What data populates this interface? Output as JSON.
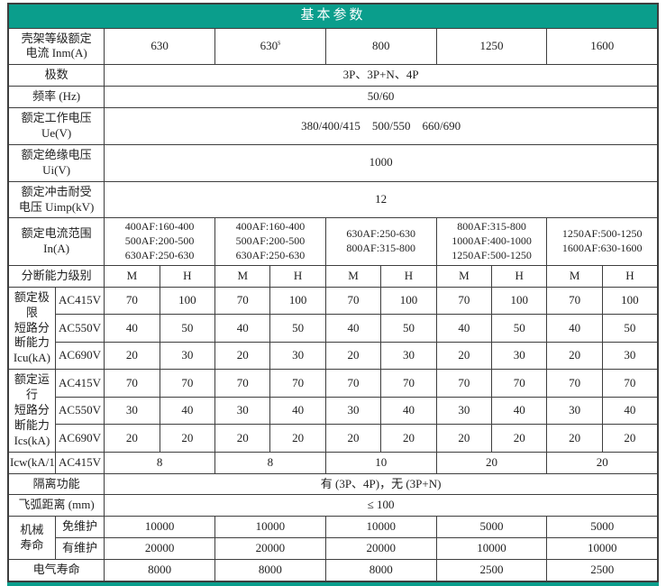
{
  "colors": {
    "header_bg": "#0a9e8c",
    "header_text": "#ffffff",
    "grid_border": "#3e3e3e",
    "body_text": "#1f1f1f"
  },
  "table": {
    "title": "基本参数",
    "rows": [
      {
        "name": "header-row",
        "cells": [
          {
            "t": "基本参数",
            "cs": 12,
            "th": true,
            "name": "table-title"
          }
        ]
      },
      {
        "name": "frame-rated-current-row",
        "cells": [
          {
            "t": "壳架等级额定\n电流 Inm(A)",
            "cs": 2,
            "th": true,
            "name": "label-frame-rated-current"
          },
          {
            "t": "630",
            "cs": 2
          },
          {
            "t": "630",
            "sup": "s",
            "cs": 2
          },
          {
            "t": "800",
            "cs": 2
          },
          {
            "t": "1250",
            "cs": 2
          },
          {
            "t": "1600",
            "cs": 2
          }
        ]
      },
      {
        "name": "poles-row",
        "cells": [
          {
            "t": "极数",
            "cs": 2,
            "th": true,
            "name": "label-poles"
          },
          {
            "t": "3P、3P+N、4P",
            "cs": 10
          }
        ]
      },
      {
        "name": "frequency-row",
        "cells": [
          {
            "t": "频率 (Hz)",
            "cs": 2,
            "th": true,
            "name": "label-frequency"
          },
          {
            "t": "50/60",
            "cs": 10
          }
        ]
      },
      {
        "name": "rated-working-voltage-row",
        "cells": [
          {
            "t": "额定工作电压\nUe(V)",
            "cs": 2,
            "th": true,
            "name": "label-rated-working-voltage"
          },
          {
            "t": "380/400/415    500/550    660/690",
            "cs": 10
          }
        ]
      },
      {
        "name": "rated-insulation-voltage-row",
        "cells": [
          {
            "t": "额定绝缘电压\nUi(V)",
            "cs": 2,
            "th": true,
            "name": "label-rated-insulation-voltage"
          },
          {
            "t": "1000",
            "cs": 10
          }
        ]
      },
      {
        "name": "rated-impulse-voltage-row",
        "cells": [
          {
            "t": "额定冲击耐受\n电压 Uimp(kV)",
            "cs": 2,
            "th": true,
            "name": "label-rated-impulse-voltage"
          },
          {
            "t": "12",
            "cs": 10
          }
        ]
      },
      {
        "name": "rated-current-range-row",
        "cells": [
          {
            "t": "额定电流范围\nIn(A)",
            "cs": 2,
            "th": true,
            "name": "label-rated-current-range"
          },
          {
            "t": "400AF:160-400\n500AF:200-500\n630AF:250-630",
            "cs": 2,
            "cls": "small"
          },
          {
            "t": "400AF:160-400\n500AF:200-500\n630AF:250-630",
            "cs": 2,
            "cls": "small"
          },
          {
            "t": "630AF:250-630\n800AF:315-800",
            "cs": 2,
            "cls": "small tall"
          },
          {
            "t": "800AF:315-800\n1000AF:400-1000\n1250AF:500-1250",
            "cs": 2,
            "cls": "small"
          },
          {
            "t": "1250AF:500-1250\n1600AF:630-1600",
            "cs": 2,
            "cls": "small tall"
          }
        ]
      },
      {
        "name": "breaking-capacity-class-row",
        "cells": [
          {
            "t": "分断能力级别",
            "cs": 2,
            "th": true,
            "name": "label-breaking-capacity-class"
          },
          {
            "t": "M"
          },
          {
            "t": "H"
          },
          {
            "t": "M"
          },
          {
            "t": "H"
          },
          {
            "t": "M"
          },
          {
            "t": "H"
          },
          {
            "t": "M"
          },
          {
            "t": "H"
          },
          {
            "t": "M"
          },
          {
            "t": "H"
          }
        ]
      },
      {
        "name": "icu-ac415v-row",
        "cells": [
          {
            "t": "额定极限\n短路分\n断能力\nIcu(kA)",
            "rs": 3,
            "th": true,
            "name": "label-icu-group"
          },
          {
            "t": "AC415V",
            "th": true,
            "name": "label-icu-ac415v"
          },
          {
            "t": "70"
          },
          {
            "t": "100"
          },
          {
            "t": "70"
          },
          {
            "t": "100"
          },
          {
            "t": "70"
          },
          {
            "t": "100"
          },
          {
            "t": "70"
          },
          {
            "t": "100"
          },
          {
            "t": "70"
          },
          {
            "t": "100"
          }
        ]
      },
      {
        "name": "icu-ac550v-row",
        "cells": [
          {
            "t": "AC550V",
            "th": true,
            "name": "label-icu-ac550v"
          },
          {
            "t": "40"
          },
          {
            "t": "50"
          },
          {
            "t": "40"
          },
          {
            "t": "50"
          },
          {
            "t": "40"
          },
          {
            "t": "50"
          },
          {
            "t": "40"
          },
          {
            "t": "50"
          },
          {
            "t": "40"
          },
          {
            "t": "50"
          }
        ]
      },
      {
        "name": "icu-ac690v-row",
        "cells": [
          {
            "t": "AC690V",
            "th": true,
            "name": "label-icu-ac690v"
          },
          {
            "t": "20"
          },
          {
            "t": "30"
          },
          {
            "t": "20"
          },
          {
            "t": "30"
          },
          {
            "t": "20"
          },
          {
            "t": "30"
          },
          {
            "t": "20"
          },
          {
            "t": "30"
          },
          {
            "t": "20"
          },
          {
            "t": "30"
          }
        ]
      },
      {
        "name": "ics-ac415v-row",
        "cells": [
          {
            "t": "额定运行\n短路分\n断能力\nIcs(kA)",
            "rs": 3,
            "th": true,
            "name": "label-ics-group"
          },
          {
            "t": "AC415V",
            "th": true,
            "name": "label-ics-ac415v"
          },
          {
            "t": "70"
          },
          {
            "t": "70"
          },
          {
            "t": "70"
          },
          {
            "t": "70"
          },
          {
            "t": "70"
          },
          {
            "t": "70"
          },
          {
            "t": "70"
          },
          {
            "t": "70"
          },
          {
            "t": "70"
          },
          {
            "t": "70"
          }
        ]
      },
      {
        "name": "ics-ac550v-row",
        "cells": [
          {
            "t": "AC550V",
            "th": true,
            "name": "label-ics-ac550v"
          },
          {
            "t": "30"
          },
          {
            "t": "40"
          },
          {
            "t": "30"
          },
          {
            "t": "40"
          },
          {
            "t": "30"
          },
          {
            "t": "40"
          },
          {
            "t": "30"
          },
          {
            "t": "40"
          },
          {
            "t": "30"
          },
          {
            "t": "40"
          }
        ]
      },
      {
        "name": "ics-ac690v-row",
        "cells": [
          {
            "t": "AC690V",
            "th": true,
            "name": "label-ics-ac690v"
          },
          {
            "t": "20"
          },
          {
            "t": "20"
          },
          {
            "t": "20"
          },
          {
            "t": "20"
          },
          {
            "t": "20"
          },
          {
            "t": "20"
          },
          {
            "t": "20"
          },
          {
            "t": "20"
          },
          {
            "t": "20"
          },
          {
            "t": "20"
          }
        ]
      },
      {
        "name": "icw-row",
        "cells": [
          {
            "t": "Icw(kA/1s)",
            "th": true,
            "name": "label-icw",
            "cls": "small"
          },
          {
            "t": "AC415V",
            "th": true,
            "name": "label-icw-ac415v"
          },
          {
            "t": "8",
            "cs": 2
          },
          {
            "t": "8",
            "cs": 2
          },
          {
            "t": "10",
            "cs": 2
          },
          {
            "t": "20",
            "cs": 2
          },
          {
            "t": "20",
            "cs": 2
          }
        ]
      },
      {
        "name": "isolation-function-row",
        "cells": [
          {
            "t": "隔离功能",
            "cs": 2,
            "th": true,
            "name": "label-isolation-function"
          },
          {
            "t": "有 (3P、4P)，无 (3P+N)",
            "cs": 10
          }
        ]
      },
      {
        "name": "arc-distance-row",
        "cells": [
          {
            "t": "飞弧距离 (mm)",
            "cs": 2,
            "th": true,
            "name": "label-arc-distance"
          },
          {
            "t": "≤ 100",
            "cs": 10
          }
        ]
      },
      {
        "name": "mech-life-maintenance-free-row",
        "cells": [
          {
            "t": "机械\n寿命",
            "rs": 2,
            "th": true,
            "name": "label-mechanical-life"
          },
          {
            "t": "免维护",
            "th": true,
            "name": "label-maintenance-free"
          },
          {
            "t": "10000",
            "cs": 2
          },
          {
            "t": "10000",
            "cs": 2
          },
          {
            "t": "10000",
            "cs": 2
          },
          {
            "t": "5000",
            "cs": 2
          },
          {
            "t": "5000",
            "cs": 2
          }
        ]
      },
      {
        "name": "mech-life-with-maintenance-row",
        "cells": [
          {
            "t": "有维护",
            "th": true,
            "name": "label-with-maintenance"
          },
          {
            "t": "20000",
            "cs": 2
          },
          {
            "t": "20000",
            "cs": 2
          },
          {
            "t": "20000",
            "cs": 2
          },
          {
            "t": "10000",
            "cs": 2
          },
          {
            "t": "10000",
            "cs": 2
          }
        ]
      },
      {
        "name": "electrical-life-row",
        "cells": [
          {
            "t": "电气寿命",
            "cs": 2,
            "th": true,
            "name": "label-electrical-life"
          },
          {
            "t": "8000",
            "cs": 2
          },
          {
            "t": "8000",
            "cs": 2
          },
          {
            "t": "8000",
            "cs": 2
          },
          {
            "t": "2500",
            "cs": 2
          },
          {
            "t": "2500",
            "cs": 2
          }
        ]
      }
    ]
  }
}
